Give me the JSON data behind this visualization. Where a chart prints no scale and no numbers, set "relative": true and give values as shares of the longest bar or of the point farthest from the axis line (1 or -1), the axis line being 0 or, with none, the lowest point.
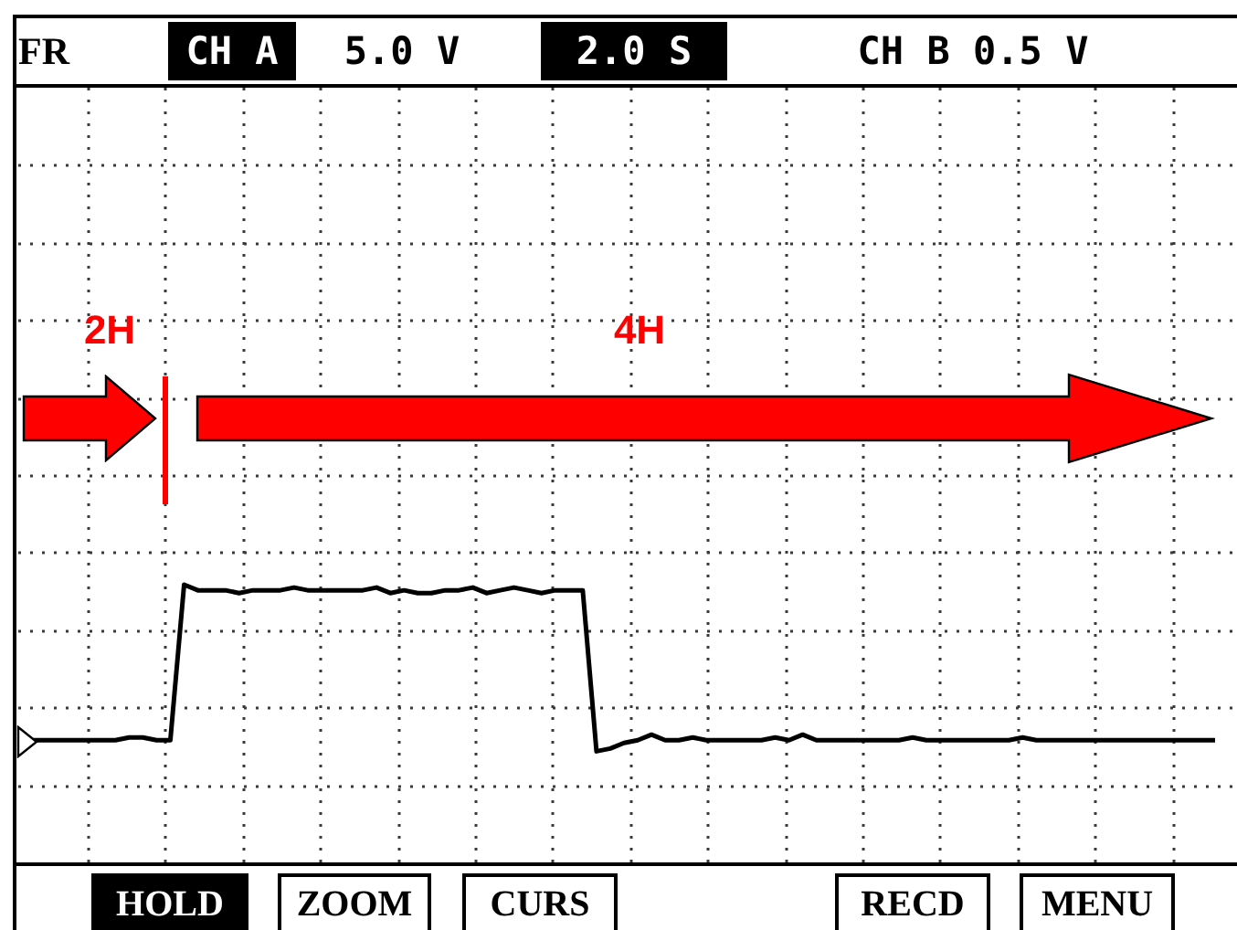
{
  "chart_data": {
    "type": "line",
    "relative": true,
    "grid": true,
    "marker": "none",
    "color": "#000000",
    "categories": [
      null,
      null,
      null,
      null,
      null,
      null,
      null,
      null,
      null,
      null,
      null,
      null,
      null,
      null,
      null,
      null,
      null,
      null,
      null,
      null,
      null,
      null,
      null,
      null,
      null,
      null,
      null,
      null,
      null,
      null,
      null,
      null,
      null,
      null,
      null,
      null,
      null,
      null,
      null,
      null,
      null,
      null,
      null,
      null,
      null,
      null,
      null,
      null,
      null,
      null,
      null,
      null,
      null,
      null,
      null,
      null,
      null,
      null,
      null,
      null,
      null,
      null,
      null,
      null,
      null,
      null,
      null,
      null,
      null,
      null,
      null,
      null,
      null,
      null,
      null,
      null,
      null,
      null,
      null,
      null,
      null,
      null,
      null,
      null,
      null,
      null,
      null
    ],
    "values": [
      0.44,
      0.44,
      0.44,
      0.44,
      0.44,
      0.44,
      0.44,
      0.45,
      0.45,
      0.44,
      0.44,
      1.0,
      0.98,
      0.98,
      0.98,
      0.97,
      0.98,
      0.98,
      0.98,
      0.99,
      0.98,
      0.98,
      0.98,
      0.98,
      0.98,
      0.99,
      0.97,
      0.98,
      0.97,
      0.97,
      0.98,
      0.98,
      0.99,
      0.97,
      0.98,
      0.99,
      0.98,
      0.97,
      0.98,
      0.98,
      0.98,
      0.4,
      0.41,
      0.43,
      0.44,
      0.46,
      0.44,
      0.44,
      0.45,
      0.44,
      0.44,
      0.44,
      0.44,
      0.44,
      0.45,
      0.44,
      0.46,
      0.44,
      0.44,
      0.44,
      0.44,
      0.44,
      0.44,
      0.44,
      0.45,
      0.44,
      0.44,
      0.44,
      0.44,
      0.44,
      0.44,
      0.44,
      0.45,
      0.44,
      0.44,
      0.44,
      0.44,
      0.44,
      0.44,
      0.44,
      0.44,
      0.44,
      0.44,
      0.44,
      0.44,
      0.44,
      0.44
    ],
    "annotations": [
      "FR",
      "CH A",
      "5.0 V",
      "2.0 S",
      "CH B 0.5 V",
      "2H",
      "4H",
      "HOLD",
      "ZOOM",
      "CURS",
      "RECD",
      "MENU"
    ]
  }
}
